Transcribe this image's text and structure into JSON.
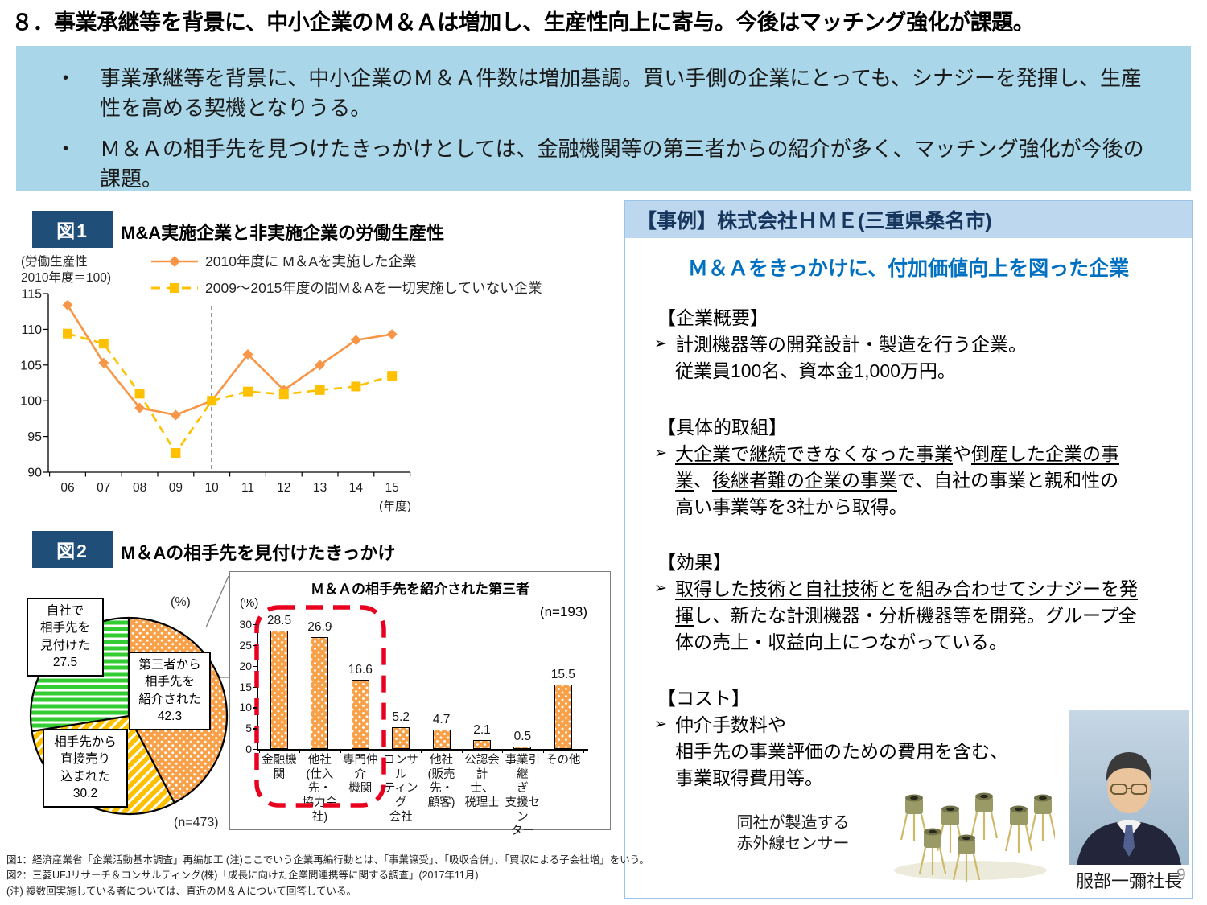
{
  "page": {
    "title": "８．事業承継等を背景に、中小企業のＭ＆Ａは増加し、生産性向上に寄与。今後はマッチング強化が課題。",
    "page_number": "9"
  },
  "summary_box": {
    "bullets": [
      "事業承継等を背景に、中小企業のＭ＆Ａ件数は増加基調。買い手側の企業にとっても、シナジーを発揮し、生産性を高める契機となりうる。",
      "Ｍ＆Ａの相手先を見つけたきっかけとしては、金融機関等の第三者からの紹介が多く、マッチング強化が今後の課題。"
    ]
  },
  "fig1": {
    "tag": "図1",
    "title": "M&A実施企業と非実施企業の労働生産性"
  },
  "fig2": {
    "tag": "図2",
    "title": "M＆Aの相手先を見付けたきっかけ"
  },
  "case_panel": {
    "header": "【事例】株式会社ＨＭＥ(三重県桑名市)",
    "subtitle": "Ｍ＆Ａをきっかけに、付加価値向上を図った企業",
    "sections": [
      {
        "heading": "【企業概要】",
        "lines": [
          [
            {
              "t": "計測機器等の開発設計・製造を行う企業。"
            }
          ],
          [
            {
              "t": "従業員100名、資本金1,000万円。"
            }
          ]
        ]
      },
      {
        "heading": "【具体的取組】",
        "lines": [
          [
            {
              "t": "大企業で継続できなくなった事業",
              "u": true
            },
            {
              "t": "や"
            },
            {
              "t": "倒産した企業の事",
              "u": true
            }
          ],
          [
            {
              "t": "業",
              "u": true
            },
            {
              "t": "、"
            },
            {
              "t": "後継者難の企業の事業",
              "u": true
            },
            {
              "t": "で、自社の事業と親和性の"
            }
          ],
          [
            {
              "t": "高い事業等を3社から取得。"
            }
          ]
        ]
      },
      {
        "heading": "【効果】",
        "lines": [
          [
            {
              "t": "取得した技術と自社技術とを組み合わせてシナジーを発",
              "u": true
            }
          ],
          [
            {
              "t": "揮",
              "u": true
            },
            {
              "t": "し、新たな計測機器・分析機器等を開発。グループ全"
            }
          ],
          [
            {
              "t": "体の売上・収益向上につながっている。"
            }
          ]
        ]
      },
      {
        "heading": "【コスト】",
        "lines": [
          [
            {
              "t": "仲介手数料や"
            }
          ],
          [
            {
              "t": "相手先の事業評価のための費用を含む、"
            }
          ],
          [
            {
              "t": "事業取得費用等。"
            }
          ]
        ]
      }
    ],
    "sensor_caption": "同社が製造する\n赤外線センサー",
    "president_caption": "服部一彌社長"
  },
  "footnotes": [
    "図1：経済産業省「企業活動基本調査」再編加工  (注)ここでいう企業再編行動とは、「事業譲受」、「吸収合併」、「買収による子会社増」をいう。",
    "図2：三菱UFJリサーチ＆コンサルティング(株)「成長に向けた企業間連携等に関する調査」(2017年11月)",
    "(注) 複数回実施している者については、直近のＭ＆Ａについて回答している。"
  ],
  "colors": {
    "accent_navy": "#1f4e79",
    "header_blue": "#bdd7ee",
    "summary_blue": "#a9d6e8",
    "series_orange": "#f79646",
    "series_gold": "#ffc000",
    "pie_green": "#33cc33",
    "highlight_red": "#e8001e",
    "subtitle_blue": "#0070c0"
  },
  "chart_data": [
    {
      "id": "fig1-line",
      "type": "line",
      "title": "M&A実施企業と非実施企業の労働生産性",
      "ylabel": "(労働生産性\n2010年度＝100)",
      "xlabel": "(年度)",
      "x": [
        "06",
        "07",
        "08",
        "09",
        "10",
        "11",
        "12",
        "13",
        "14",
        "15"
      ],
      "ylim": [
        90,
        115
      ],
      "yticks": [
        90,
        95,
        100,
        105,
        110,
        115
      ],
      "vline_at": "10",
      "grid": false,
      "legend_position": "top",
      "series": [
        {
          "name": "2010年度に M＆Aを実施した企業",
          "color": "#f79646",
          "style": "solid",
          "marker": "diamond",
          "values": [
            113.4,
            105.3,
            99.0,
            98.0,
            100.0,
            106.5,
            101.5,
            105.0,
            108.5,
            109.3
          ]
        },
        {
          "name": "2009～2015年度の間M＆Aを一切実施していない企業",
          "color": "#ffc000",
          "style": "dashed",
          "marker": "square",
          "values": [
            109.4,
            108.0,
            101.0,
            92.7,
            100.0,
            101.3,
            100.9,
            101.5,
            102.0,
            103.5
          ]
        }
      ]
    },
    {
      "id": "fig2-pie",
      "type": "pie",
      "unit_label": "(%)",
      "n_label": "(n=473)",
      "slices": [
        {
          "label": "第三者から相手先を紹介された",
          "value": 42.3,
          "pattern": "dots",
          "color": "#f9a149",
          "box_text": "第三者から\n相手先を\n紹介された\n42.3"
        },
        {
          "label": "相手先から直接売り込まれた",
          "value": 30.2,
          "pattern": "diag",
          "color": "#ffc000",
          "box_text": "相手先から\n直接売り\n込まれた\n30.2"
        },
        {
          "label": "自社で相手先を見付けた",
          "value": 27.5,
          "pattern": "horiz",
          "color": "#33cc33",
          "box_text": "自社で\n相手先を\n見付けた\n27.5"
        }
      ]
    },
    {
      "id": "fig2-bar",
      "type": "bar",
      "title": "Ｍ＆Ａの相手先を紹介された第三者",
      "unit_label": "(%)",
      "n_label": "(n=193)",
      "ylim": [
        0,
        30
      ],
      "yticks": [
        0,
        5,
        10,
        15,
        20,
        25,
        30
      ],
      "categories": [
        "金融機関",
        "他社\n(仕入先・\n協力会\n社)",
        "専門仲介\n機関",
        "コンサル\nティング\n会社",
        "他社\n(販売先・\n顧客)",
        "公認会計\n士、\n税理士",
        "事業引継\nぎ\n支援セン\nター",
        "その他"
      ],
      "values": [
        28.5,
        26.9,
        16.6,
        5.2,
        4.7,
        2.1,
        0.5,
        15.5
      ],
      "highlight_first_n": 3
    }
  ]
}
